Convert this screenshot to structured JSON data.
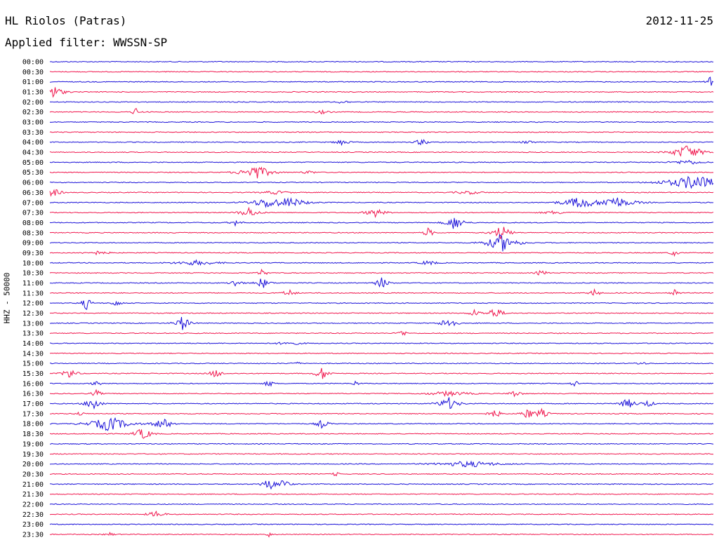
{
  "header": {
    "station": "HL Riolos (Patras)",
    "date": "2012-11-25",
    "filter": "Applied filter: WWSSN-SP"
  },
  "channel_label": "HHZ - 50000",
  "colors": {
    "blue": "#1a10d8",
    "red": "#f0174e"
  },
  "chart_data": {
    "type": "line",
    "title": "HL Riolos (Patras)",
    "subtitle": "Applied filter: WWSSN-SP",
    "ylabel": "HHZ - 50000",
    "date": "2012-11-25",
    "trace_colors": [
      "#1a10d8",
      "#f0174e"
    ],
    "traces": [
      {
        "time": "00:00",
        "events": []
      },
      {
        "time": "00:30",
        "events": []
      },
      {
        "time": "01:00",
        "events": [
          {
            "x": 0.997,
            "amp": 14,
            "dur": 0.004
          }
        ]
      },
      {
        "time": "01:30",
        "events": [
          {
            "x": 0.001,
            "amp": 14,
            "dur": 0.01
          }
        ]
      },
      {
        "time": "02:00",
        "events": [
          {
            "x": 0.44,
            "amp": 3,
            "dur": 0.01
          }
        ]
      },
      {
        "time": "02:30",
        "events": [
          {
            "x": 0.13,
            "amp": 7,
            "dur": 0.003
          },
          {
            "x": 0.41,
            "amp": 3,
            "dur": 0.01
          }
        ]
      },
      {
        "time": "03:00",
        "events": []
      },
      {
        "time": "03:30",
        "events": []
      },
      {
        "time": "04:00",
        "events": [
          {
            "x": 0.44,
            "amp": 6,
            "dur": 0.006
          },
          {
            "x": 0.56,
            "amp": 6,
            "dur": 0.006
          },
          {
            "x": 0.72,
            "amp": 4,
            "dur": 0.006
          }
        ]
      },
      {
        "time": "04:30",
        "events": [
          {
            "x": 0.96,
            "amp": 12,
            "dur": 0.015
          }
        ]
      },
      {
        "time": "05:00",
        "events": [
          {
            "x": 0.96,
            "amp": 4,
            "dur": 0.02
          }
        ]
      },
      {
        "time": "05:30",
        "events": [
          {
            "x": 0.31,
            "amp": 12,
            "dur": 0.015
          },
          {
            "x": 0.39,
            "amp": 3,
            "dur": 0.01
          }
        ]
      },
      {
        "time": "06:00",
        "events": [
          {
            "x": 0.97,
            "amp": 12,
            "dur": 0.03
          }
        ]
      },
      {
        "time": "06:30",
        "events": [
          {
            "x": 0.001,
            "amp": 10,
            "dur": 0.008
          },
          {
            "x": 0.34,
            "amp": 3,
            "dur": 0.02
          },
          {
            "x": 0.63,
            "amp": 3,
            "dur": 0.02
          }
        ]
      },
      {
        "time": "07:00",
        "events": [
          {
            "x": 0.33,
            "amp": 9,
            "dur": 0.02
          },
          {
            "x": 0.36,
            "amp": 8,
            "dur": 0.02
          },
          {
            "x": 0.8,
            "amp": 10,
            "dur": 0.02
          },
          {
            "x": 0.85,
            "amp": 10,
            "dur": 0.02
          }
        ]
      },
      {
        "time": "07:30",
        "events": [
          {
            "x": 0.3,
            "amp": 8,
            "dur": 0.01
          },
          {
            "x": 0.49,
            "amp": 7,
            "dur": 0.01
          },
          {
            "x": 0.76,
            "amp": 3,
            "dur": 0.02
          }
        ]
      },
      {
        "time": "08:00",
        "events": [
          {
            "x": 0.28,
            "amp": 5,
            "dur": 0.006
          },
          {
            "x": 0.61,
            "amp": 12,
            "dur": 0.008
          }
        ]
      },
      {
        "time": "08:30",
        "events": [
          {
            "x": 0.57,
            "amp": 8,
            "dur": 0.004
          },
          {
            "x": 0.68,
            "amp": 12,
            "dur": 0.008
          }
        ]
      },
      {
        "time": "09:00",
        "events": [
          {
            "x": 0.68,
            "amp": 14,
            "dur": 0.015
          }
        ]
      },
      {
        "time": "09:30",
        "events": [
          {
            "x": 0.07,
            "amp": 3,
            "dur": 0.02
          },
          {
            "x": 0.94,
            "amp": 6,
            "dur": 0.003
          }
        ]
      },
      {
        "time": "10:00",
        "events": [
          {
            "x": 0.22,
            "amp": 4,
            "dur": 0.03
          },
          {
            "x": 0.57,
            "amp": 4,
            "dur": 0.01
          }
        ]
      },
      {
        "time": "10:30",
        "events": [
          {
            "x": 0.32,
            "amp": 6,
            "dur": 0.004
          },
          {
            "x": 0.74,
            "amp": 6,
            "dur": 0.004
          }
        ]
      },
      {
        "time": "11:00",
        "events": [
          {
            "x": 0.28,
            "amp": 6,
            "dur": 0.006
          },
          {
            "x": 0.32,
            "amp": 9,
            "dur": 0.006
          },
          {
            "x": 0.5,
            "amp": 9,
            "dur": 0.006
          }
        ]
      },
      {
        "time": "11:30",
        "events": [
          {
            "x": 0.36,
            "amp": 6,
            "dur": 0.006
          },
          {
            "x": 0.82,
            "amp": 7,
            "dur": 0.004
          },
          {
            "x": 0.94,
            "amp": 7,
            "dur": 0.004
          }
        ]
      },
      {
        "time": "12:00",
        "events": [
          {
            "x": 0.055,
            "amp": 10,
            "dur": 0.004
          },
          {
            "x": 0.1,
            "amp": 6,
            "dur": 0.004
          }
        ]
      },
      {
        "time": "12:30",
        "events": [
          {
            "x": 0.67,
            "amp": 9,
            "dur": 0.008
          },
          {
            "x": 0.64,
            "amp": 6,
            "dur": 0.006
          }
        ]
      },
      {
        "time": "13:00",
        "events": [
          {
            "x": 0.2,
            "amp": 12,
            "dur": 0.006
          },
          {
            "x": 0.6,
            "amp": 12,
            "dur": 0.006
          }
        ]
      },
      {
        "time": "13:30",
        "events": [
          {
            "x": 0.53,
            "amp": 6,
            "dur": 0.004
          }
        ]
      },
      {
        "time": "14:00",
        "events": [
          {
            "x": 0.36,
            "amp": 3,
            "dur": 0.02
          }
        ]
      },
      {
        "time": "14:30",
        "events": []
      },
      {
        "time": "15:00",
        "events": [
          {
            "x": 0.37,
            "amp": 3,
            "dur": 0.006
          },
          {
            "x": 0.89,
            "amp": 3,
            "dur": 0.006
          }
        ]
      },
      {
        "time": "15:30",
        "events": [
          {
            "x": 0.03,
            "amp": 9,
            "dur": 0.006
          },
          {
            "x": 0.25,
            "amp": 7,
            "dur": 0.006
          },
          {
            "x": 0.41,
            "amp": 10,
            "dur": 0.006
          }
        ]
      },
      {
        "time": "16:00",
        "events": [
          {
            "x": 0.07,
            "amp": 5,
            "dur": 0.004
          },
          {
            "x": 0.33,
            "amp": 6,
            "dur": 0.004
          },
          {
            "x": 0.46,
            "amp": 4,
            "dur": 0.004
          },
          {
            "x": 0.79,
            "amp": 5,
            "dur": 0.004
          }
        ]
      },
      {
        "time": "16:30",
        "events": [
          {
            "x": 0.07,
            "amp": 6,
            "dur": 0.004
          },
          {
            "x": 0.6,
            "amp": 4,
            "dur": 0.03
          },
          {
            "x": 0.7,
            "amp": 6,
            "dur": 0.006
          }
        ]
      },
      {
        "time": "17:00",
        "events": [
          {
            "x": 0.065,
            "amp": 12,
            "dur": 0.006
          },
          {
            "x": 0.6,
            "amp": 10,
            "dur": 0.01
          },
          {
            "x": 0.87,
            "amp": 8,
            "dur": 0.008
          },
          {
            "x": 0.9,
            "amp": 6,
            "dur": 0.006
          }
        ]
      },
      {
        "time": "17:30",
        "events": [
          {
            "x": 0.045,
            "amp": 4,
            "dur": 0.004
          },
          {
            "x": 0.67,
            "amp": 7,
            "dur": 0.006
          },
          {
            "x": 0.72,
            "amp": 9,
            "dur": 0.006
          },
          {
            "x": 0.74,
            "amp": 8,
            "dur": 0.006
          }
        ]
      },
      {
        "time": "18:00",
        "events": [
          {
            "x": 0.09,
            "amp": 12,
            "dur": 0.02
          },
          {
            "x": 0.17,
            "amp": 9,
            "dur": 0.01
          },
          {
            "x": 0.41,
            "amp": 7,
            "dur": 0.006
          }
        ]
      },
      {
        "time": "18:30",
        "events": [
          {
            "x": 0.14,
            "amp": 10,
            "dur": 0.008
          }
        ]
      },
      {
        "time": "19:00",
        "events": []
      },
      {
        "time": "19:30",
        "events": []
      },
      {
        "time": "20:00",
        "events": [
          {
            "x": 0.63,
            "amp": 5,
            "dur": 0.04
          }
        ]
      },
      {
        "time": "20:30",
        "events": [
          {
            "x": 0.43,
            "amp": 4,
            "dur": 0.003
          }
        ]
      },
      {
        "time": "21:00",
        "events": [
          {
            "x": 0.33,
            "amp": 10,
            "dur": 0.006
          },
          {
            "x": 0.35,
            "amp": 9,
            "dur": 0.006
          }
        ]
      },
      {
        "time": "21:30",
        "events": []
      },
      {
        "time": "22:00",
        "events": []
      },
      {
        "time": "22:30",
        "events": [
          {
            "x": 0.16,
            "amp": 5,
            "dur": 0.01
          }
        ]
      },
      {
        "time": "23:00",
        "events": []
      },
      {
        "time": "23:30",
        "events": [
          {
            "x": 0.09,
            "amp": 3,
            "dur": 0.006
          },
          {
            "x": 0.33,
            "amp": 4,
            "dur": 0.003
          }
        ]
      }
    ]
  }
}
